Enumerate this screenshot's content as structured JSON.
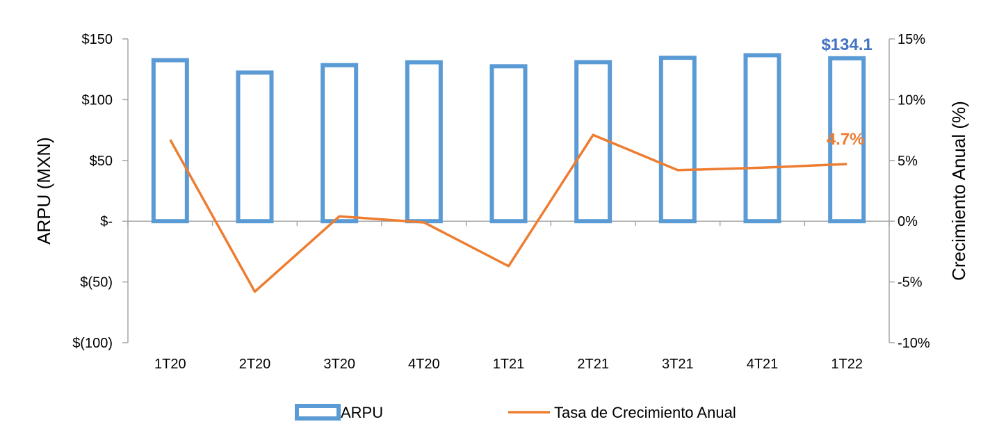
{
  "chart_data": {
    "type": "bar+line",
    "categories": [
      "1T20",
      "2T20",
      "3T20",
      "4T20",
      "1T21",
      "2T21",
      "3T21",
      "4T21",
      "1T22"
    ],
    "series": [
      {
        "name": "ARPU",
        "type": "bar",
        "axis": "left",
        "values": [
          132.5,
          122.3,
          128.4,
          130.8,
          127.5,
          130.9,
          134.5,
          136.6,
          134.1
        ],
        "color": "#5B9BD5"
      },
      {
        "name": "Tasa de Crecimiento Anual",
        "type": "line",
        "axis": "right",
        "values": [
          6.7,
          -5.8,
          0.4,
          -0.1,
          -3.7,
          7.1,
          4.2,
          4.4,
          4.7
        ],
        "color": "#ED7D31"
      }
    ],
    "left_axis": {
      "label": "ARPU (MXN)",
      "ylim": [
        -100,
        150
      ],
      "ticks": [
        150,
        100,
        50,
        0,
        -50,
        -100
      ],
      "tick_labels": [
        "$150",
        "$100",
        "$50",
        "$-",
        "$(50)",
        "$(100)"
      ]
    },
    "right_axis": {
      "label": "Crecimiento Anual (%)",
      "ylim": [
        -10,
        15
      ],
      "ticks": [
        15,
        10,
        5,
        0,
        -5,
        -10
      ],
      "tick_labels": [
        "15%",
        "10%",
        "5%",
        "0%",
        "-5%",
        "-10%"
      ]
    },
    "annotations": [
      {
        "text": "$134.1",
        "series": "ARPU",
        "category": "1T22",
        "color": "#4472C4"
      },
      {
        "text": "4.7%",
        "series": "Tasa de Crecimiento Anual",
        "category": "1T22",
        "color": "#ED7D31"
      }
    ],
    "legend": {
      "placement": "bottom",
      "entries": [
        "ARPU",
        "Tasa de Crecimiento Anual"
      ]
    },
    "grid": false
  }
}
